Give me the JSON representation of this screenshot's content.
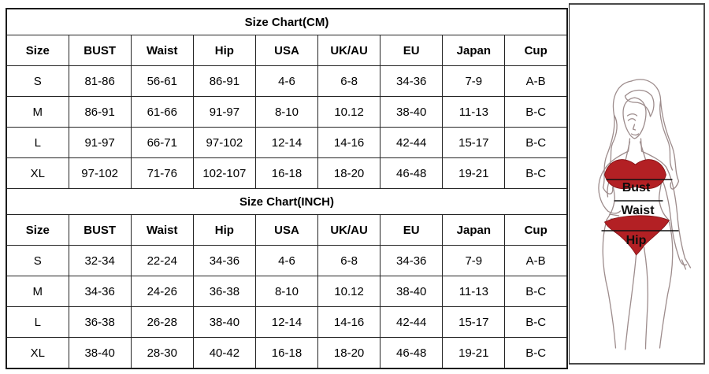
{
  "page": {
    "background": "#ffffff"
  },
  "colors": {
    "table_border": "#1b1b1b",
    "cell_border": "#242424",
    "text": "#000000",
    "bikini_red": "#b32024",
    "line_art": "#9d8c8c",
    "measure_line": "#111111"
  },
  "chart_data": [
    {
      "type": "table",
      "title": "Size Chart(CM)",
      "columns": [
        "Size",
        "BUST",
        "Waist",
        "Hip",
        "USA",
        "UK/AU",
        "EU",
        "Japan",
        "Cup"
      ],
      "rows": [
        [
          "S",
          "81-86",
          "56-61",
          "86-91",
          "4-6",
          "6-8",
          "34-36",
          "7-9",
          "A-B"
        ],
        [
          "M",
          "86-91",
          "61-66",
          "91-97",
          "8-10",
          "10.12",
          "38-40",
          "11-13",
          "B-C"
        ],
        [
          "L",
          "91-97",
          "66-71",
          "97-102",
          "12-14",
          "14-16",
          "42-44",
          "15-17",
          "B-C"
        ],
        [
          "XL",
          "97-102",
          "71-76",
          "102-107",
          "16-18",
          "18-20",
          "46-48",
          "19-21",
          "B-C"
        ]
      ]
    },
    {
      "type": "table",
      "title": "Size Chart(INCH)",
      "columns": [
        "Size",
        "BUST",
        "Waist",
        "Hip",
        "USA",
        "UK/AU",
        "EU",
        "Japan",
        "Cup"
      ],
      "rows": [
        [
          "S",
          "32-34",
          "22-24",
          "34-36",
          "4-6",
          "6-8",
          "34-36",
          "7-9",
          "A-B"
        ],
        [
          "M",
          "34-36",
          "24-26",
          "36-38",
          "8-10",
          "10.12",
          "38-40",
          "11-13",
          "B-C"
        ],
        [
          "L",
          "36-38",
          "26-28",
          "38-40",
          "12-14",
          "14-16",
          "42-44",
          "15-17",
          "B-C"
        ],
        [
          "XL",
          "38-40",
          "28-30",
          "40-42",
          "16-18",
          "18-20",
          "46-48",
          "19-21",
          "B-C"
        ]
      ]
    }
  ],
  "figure": {
    "labels": {
      "bust": "Bust",
      "waist": "Waist",
      "hip": "Hip"
    }
  }
}
